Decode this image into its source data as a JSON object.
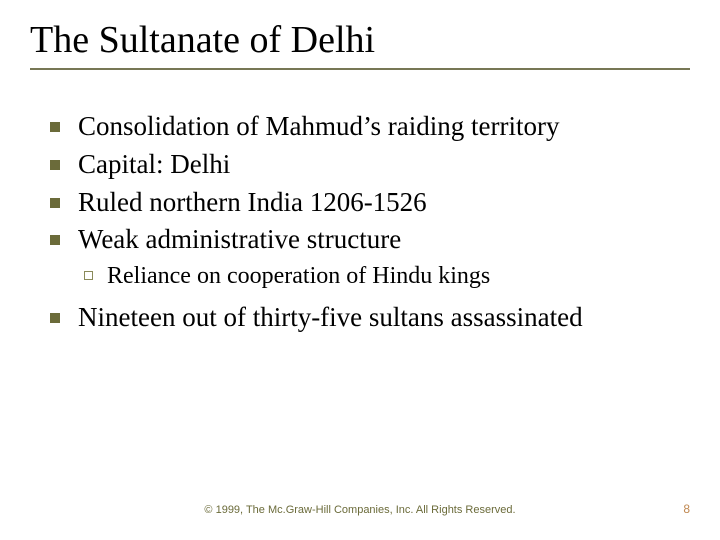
{
  "title": "The Sultanate of Delhi",
  "bullets": [
    {
      "text": "Consolidation of Mahmud’s raiding territory"
    },
    {
      "text": "Capital: Delhi"
    },
    {
      "text": "Ruled northern India 1206-1526"
    },
    {
      "text": "Weak administrative structure",
      "sub": [
        {
          "text": "Reliance on cooperation of Hindu kings"
        }
      ]
    },
    {
      "text": "Nineteen out of thirty-five sultans assassinated"
    }
  ],
  "footer": "© 1999, The Mc.Graw-Hill Companies, Inc. All Rights Reserved.",
  "page_number": "8",
  "style": {
    "background_color": "#ffffff",
    "title_fontsize": 38,
    "title_color": "#000000",
    "title_underline_color": "#777755",
    "bullet_fontsize": 27,
    "bullet_color": "#000000",
    "bullet_square_color": "#6b6b3a",
    "sub_fontsize": 24,
    "sub_square_border": "#8a8a5a",
    "footer_fontsize": 11,
    "footer_color": "#6b6b3a",
    "pagenum_fontsize": 12,
    "pagenum_color": "#c08850",
    "font_family": "Times New Roman"
  }
}
